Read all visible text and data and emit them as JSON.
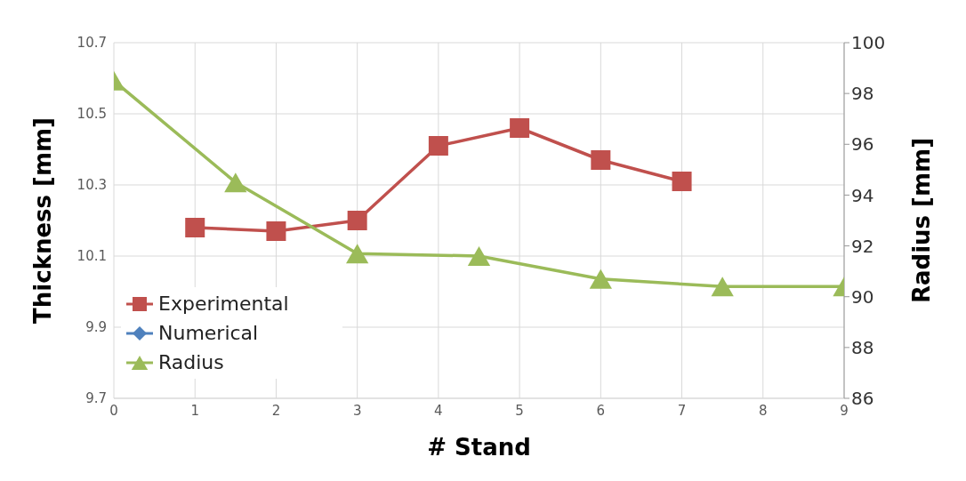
{
  "chart_data": {
    "type": "line",
    "xlabel": "# Stand",
    "ylabel": "Thickness [mm]",
    "y2label": "Radius [mm]",
    "xlim": [
      0,
      9
    ],
    "xticks": [
      0,
      1,
      2,
      3,
      4,
      5,
      6,
      7,
      8,
      9
    ],
    "ylim": [
      9.7,
      10.7
    ],
    "yticks": [
      {
        "value": 9.7,
        "label": "9.7"
      },
      {
        "value": 9.9,
        "label": "9.9"
      },
      {
        "value": 10.1,
        "label": "10.1"
      },
      {
        "value": 10.3,
        "label": "10.3"
      },
      {
        "value": 10.5,
        "label": "10.5"
      },
      {
        "value": 10.7,
        "label": "10.7"
      }
    ],
    "y2lim": [
      86,
      100
    ],
    "y2ticks": [
      86,
      88,
      90,
      92,
      94,
      96,
      98,
      100
    ],
    "grid": true,
    "legend": "bottom left",
    "series": [
      {
        "name": "Experimental",
        "color": "#c0504d",
        "marker": "square",
        "x": [
          1,
          2,
          3,
          4,
          5,
          6,
          7
        ],
        "values": [
          10.18,
          10.17,
          10.2,
          10.41,
          10.46,
          10.37,
          10.31
        ]
      },
      {
        "name": "Numerical",
        "color": "#4f81bd",
        "marker": "diamond"
      },
      {
        "name": "Radius",
        "color": "#9bbb59",
        "marker": "triangle",
        "axis": "y2",
        "x": [
          0,
          1.5,
          3,
          4.5,
          6,
          7.5,
          9
        ],
        "values": [
          98.5,
          94.5,
          91.7,
          91.6,
          90.7,
          90.4,
          90.4
        ]
      }
    ]
  }
}
